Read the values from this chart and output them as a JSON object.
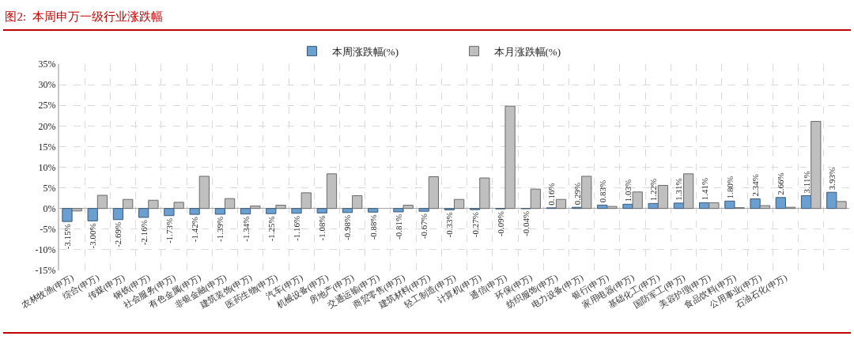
{
  "chart_data": {
    "type": "bar",
    "title": "图2:  本周申万一级行业涨跌幅",
    "categories": [
      "农林牧渔(申万)",
      "综合(申万)",
      "传媒(申万)",
      "钢铁(申万)",
      "社会服务(申万)",
      "有色金属(申万)",
      "非银金融(申万)",
      "建筑装饰(申万)",
      "医药生物(申万)",
      "汽车(申万)",
      "机械设备(申万)",
      "房地产(申万)",
      "交通运输(申万)",
      "商贸零售(申万)",
      "建筑材料(申万)",
      "轻工制造(申万)",
      "计算机(申万)",
      "通信(申万)",
      "环保(申万)",
      "纺织服饰(申万)",
      "电力设备(申万)",
      "银行(申万)",
      "家用电器(申万)",
      "基础化工(申万)",
      "国防军工(申万)",
      "美容护理(申万)",
      "食品饮料(申万)",
      "公用事业(申万)",
      "石油石化(申万)",
      null,
      null
    ],
    "series": [
      {
        "name": "本周涨跌幅(%)",
        "color": "#6a9fd2",
        "values": [
          -3.15,
          -3.0,
          -2.69,
          -2.16,
          -1.73,
          -1.42,
          -1.39,
          -1.34,
          -1.25,
          -1.16,
          -1.08,
          -0.98,
          -0.88,
          -0.81,
          -0.67,
          -0.33,
          -0.27,
          -0.09,
          -0.04,
          0.16,
          0.29,
          0.83,
          1.03,
          1.22,
          1.31,
          1.41,
          1.8,
          2.34,
          2.66,
          3.11,
          3.93
        ],
        "value_labels": [
          "-3.15%",
          "-3.00%",
          "-2.69%",
          "-2.16%",
          "-1.73%",
          "-1.42%",
          "-1.39%",
          "-1.34%",
          "-1.25%",
          "-1.16%",
          "-1.08%",
          "-0.98%",
          "-0.88%",
          "-0.81%",
          "-0.67%",
          "-0.33%",
          "-0.27%",
          "-0.09%",
          "-0.04%",
          "0.16%",
          "0.29%",
          "0.83%",
          "1.03%",
          "1.22%",
          "1.31%",
          "1.41%",
          "1.80%",
          "2.34%",
          "2.66%",
          "3.11%",
          "3.93%"
        ]
      },
      {
        "name": "本月涨跌幅(%)",
        "color": "#bfbfbf",
        "values": [
          -0.6,
          3.2,
          2.2,
          2.0,
          1.5,
          7.8,
          2.4,
          0.6,
          0.8,
          3.8,
          8.4,
          3.1,
          null,
          0.8,
          7.7,
          2.2,
          7.4,
          24.8,
          4.7,
          2.2,
          7.8,
          0.5,
          4.0,
          5.6,
          8.4,
          1.4,
          0.2,
          0.7,
          0.3,
          21.1,
          1.7
        ]
      }
    ],
    "ylim": [
      -15,
      35
    ],
    "yticks": [
      {
        "value": -15,
        "label": "-15%"
      },
      {
        "value": -10,
        "label": "-10%"
      },
      {
        "value": -5,
        "label": "-5%"
      },
      {
        "value": 0,
        "label": "0%"
      },
      {
        "value": 5,
        "label": "5%"
      },
      {
        "value": 10,
        "label": "10%"
      },
      {
        "value": 15,
        "label": "15%"
      },
      {
        "value": 20,
        "label": "20%"
      },
      {
        "value": 25,
        "label": "25%"
      },
      {
        "value": 30,
        "label": "30%"
      },
      {
        "value": 35,
        "label": "35%"
      }
    ],
    "grid": true,
    "legend": "top"
  }
}
